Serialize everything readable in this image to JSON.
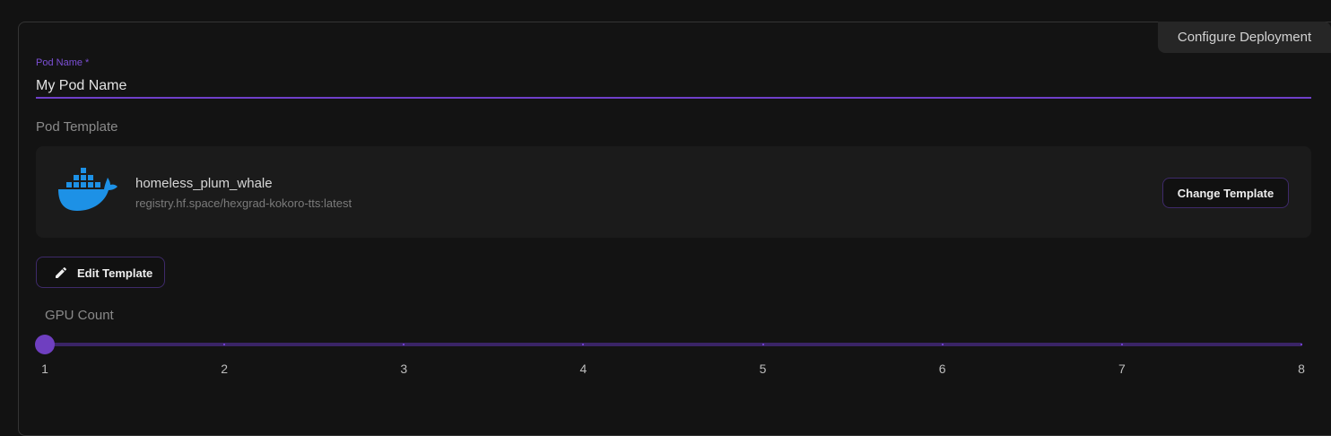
{
  "tab": {
    "label": "Configure Deployment"
  },
  "pod_name": {
    "label": "Pod Name *",
    "value": "My Pod Name"
  },
  "pod_template": {
    "label": "Pod Template",
    "name": "homeless_plum_whale",
    "image": "registry.hf.space/hexgrad-kokoro-tts:latest",
    "icon": "docker-whale-icon",
    "change_label": "Change Template"
  },
  "edit_template": {
    "label": "Edit Template",
    "icon": "pencil-icon"
  },
  "gpu_count": {
    "label": "GPU Count",
    "value": 1,
    "min": 1,
    "max": 8,
    "marks": [
      "1",
      "2",
      "3",
      "4",
      "5",
      "6",
      "7",
      "8"
    ]
  },
  "colors": {
    "accent": "#6f3fc0",
    "docker": "#1d91e6"
  }
}
